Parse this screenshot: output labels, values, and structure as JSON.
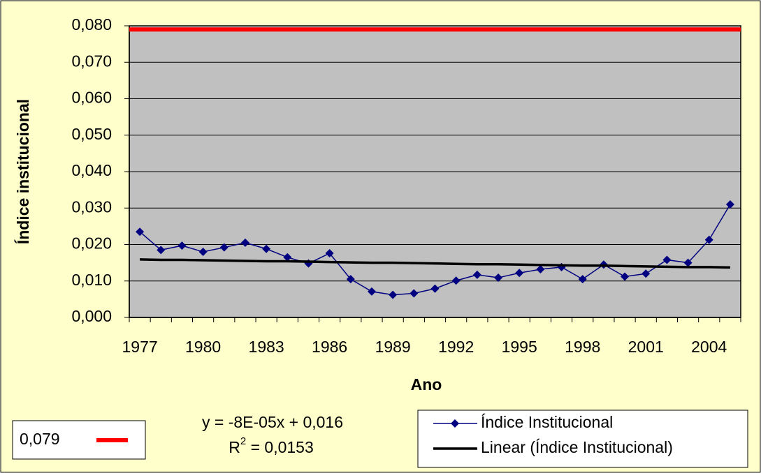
{
  "chart_data": {
    "type": "line",
    "y_axis_title": "Índice institucional",
    "x_axis_title": "Ano",
    "categories": [
      "1977",
      null,
      null,
      "1980",
      null,
      null,
      "1983",
      null,
      null,
      "1986",
      null,
      null,
      "1989",
      null,
      null,
      "1992",
      null,
      null,
      "1995",
      null,
      null,
      "1998",
      null,
      null,
      "2001",
      null,
      null,
      "2004",
      null
    ],
    "series": [
      {
        "name": "Índice Institucional",
        "color": "#000080",
        "marker": "diamond",
        "values": [
          0.0235,
          0.0185,
          0.0197,
          0.018,
          0.0192,
          0.0205,
          0.0188,
          0.0165,
          0.0148,
          0.0176,
          0.0105,
          0.0071,
          0.0062,
          0.0066,
          0.0079,
          0.0101,
          0.0117,
          0.0109,
          0.0122,
          0.0132,
          0.0138,
          0.0105,
          0.0145,
          0.0112,
          0.012,
          0.0158,
          0.015,
          0.0213,
          0.031
        ]
      },
      {
        "name": "Linear (Índice Institucional)",
        "color": "#000000",
        "marker": "none",
        "values": [
          0.0159,
          0.0158,
          0.0158,
          0.0157,
          0.0156,
          0.0155,
          0.0154,
          0.0154,
          0.0153,
          0.0152,
          0.0151,
          0.015,
          0.015,
          0.0149,
          0.0148,
          0.0147,
          0.0146,
          0.0146,
          0.0145,
          0.0144,
          0.0143,
          0.0142,
          0.0142,
          0.0141,
          0.014,
          0.0139,
          0.0138,
          0.0138,
          0.0137
        ]
      }
    ],
    "reference_line": {
      "value": 0.079,
      "label": "0,079",
      "color": "#ff0000"
    },
    "trend_equation": "y = -8E-05x + 0,016",
    "r_squared": [
      "R",
      "2",
      " = 0,0153"
    ],
    "ylim": [
      0,
      0.08
    ],
    "yticks": [
      {
        "value": 0,
        "label": "0,000"
      },
      {
        "value": 0.01,
        "label": "0,010"
      },
      {
        "value": 0.02,
        "label": "0,020"
      },
      {
        "value": 0.03,
        "label": "0,030"
      },
      {
        "value": 0.04,
        "label": "0,040"
      },
      {
        "value": 0.05,
        "label": "0,050"
      },
      {
        "value": 0.06,
        "label": "0,060"
      },
      {
        "value": 0.07,
        "label": "0,070"
      },
      {
        "value": 0.08,
        "label": "0,080"
      }
    ],
    "grid": true,
    "plot_background": "#c0c0c0",
    "background": "#ffffcc"
  }
}
